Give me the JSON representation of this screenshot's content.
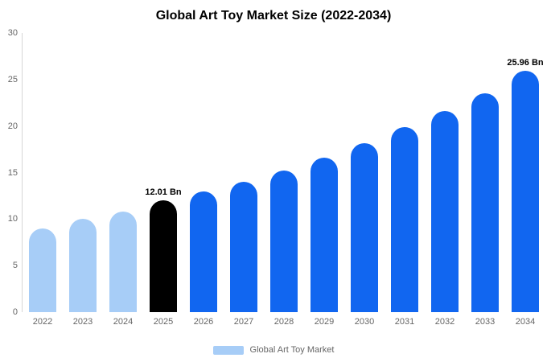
{
  "chart_data": {
    "type": "bar",
    "title": "Global Art Toy Market Size (2022-2034)",
    "categories": [
      "2022",
      "2023",
      "2024",
      "2025",
      "2026",
      "2027",
      "2028",
      "2029",
      "2030",
      "2031",
      "2032",
      "2033",
      "2034"
    ],
    "values": [
      9.0,
      10.0,
      10.8,
      12.01,
      12.95,
      14.0,
      15.2,
      16.6,
      18.15,
      19.9,
      21.65,
      23.55,
      25.96
    ],
    "bar_colors": [
      "#a7cdf7",
      "#a7cdf7",
      "#a7cdf7",
      "#000000",
      "#1166f0",
      "#1166f0",
      "#1166f0",
      "#1166f0",
      "#1166f0",
      "#1166f0",
      "#1166f0",
      "#1166f0",
      "#1166f0"
    ],
    "annotations": [
      {
        "index": 3,
        "text": "12.01 Bn"
      },
      {
        "index": 12,
        "text": "25.96 Bn"
      }
    ],
    "xlabel": "",
    "ylabel": "",
    "ylim": [
      0,
      30
    ],
    "yticks": [
      0,
      5,
      10,
      15,
      20,
      25,
      30
    ],
    "grid": false,
    "legend": {
      "label": "Global Art Toy Market",
      "swatch_color": "#a7cdf7",
      "position": "bottom"
    },
    "colors": {
      "highlight_bar": "#000000",
      "primary_bar": "#1166f0",
      "historic_bar": "#a7cdf7",
      "axis_text": "#666666",
      "axis_line": "#d6d6d6",
      "title_text": "#000000"
    }
  }
}
